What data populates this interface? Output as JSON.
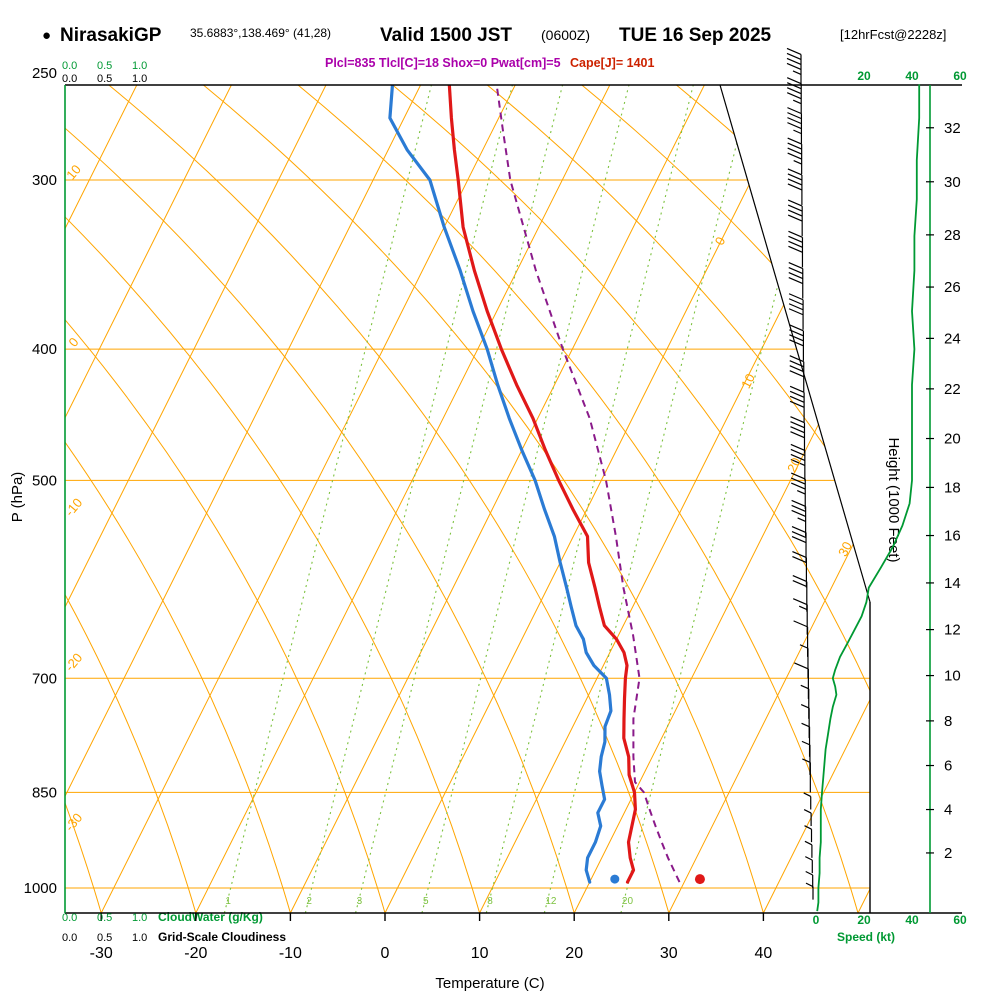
{
  "header": {
    "bullet": "●",
    "station": "NirasakiGP",
    "coords": "35.6883°,138.469° (41,28)",
    "valid": "Valid 1500 JST",
    "zulu": "(0600Z)",
    "date": "TUE 16 Sep 2025",
    "fcst": "[12hrFcst@2228z]",
    "params_left": "Plcl=835 Tlcl[C]=18 Shox=0 Pwat[cm]=5",
    "params_cape": "Cape[J]= 1401"
  },
  "axes": {
    "pressure_label": "P (hPa)",
    "pressure_ticks": [
      250,
      300,
      400,
      500,
      700,
      850,
      1000
    ],
    "temp_label": "Temperature (C)",
    "temp_ticks": [
      -30,
      -20,
      -10,
      0,
      10,
      20,
      30,
      40
    ],
    "height_label": "Height (1000 Feet)",
    "height_ticks": [
      2,
      4,
      6,
      8,
      10,
      12,
      14,
      16,
      18,
      20,
      22,
      24,
      26,
      28,
      30,
      32
    ],
    "speed_label": "Speed (kt)",
    "speed_ticks": [
      0,
      20,
      40,
      60
    ],
    "cloudwater_label": "CloudWater (g/Kg)",
    "cloudwater_scale": [
      "0.0",
      "0.5",
      "1.0"
    ],
    "cloudiness_label": "Grid-Scale Cloudiness",
    "cloudiness_scale": [
      "0.0",
      "0.5",
      "1.0"
    ],
    "isotherm_labels": [
      0,
      10,
      20,
      30
    ],
    "adiabat_labels": [
      10,
      0,
      -10,
      -20,
      -30
    ],
    "mixing_ratio_labels": [
      1,
      2,
      3,
      5,
      8,
      12,
      20
    ]
  },
  "colors": {
    "orange": "#ffa500",
    "green": "#009933",
    "light_green": "#7cc23f",
    "red": "#e01818",
    "blue": "#2b7bd4",
    "purple": "#8a1a8a",
    "param_purple": "#aa00aa",
    "param_red": "#cc2200",
    "black": "#000000"
  },
  "chart_data": {
    "type": "line",
    "title": "Skew-T log-P sounding, NirasakiGP, valid 1500 JST (0600Z) TUE 16 Sep 2025",
    "x_axis": {
      "label": "Temperature (C)",
      "range": [
        -35,
        45
      ]
    },
    "y_axis": {
      "label": "P (hPa)",
      "range": [
        1045,
        250
      ],
      "scale": "log"
    },
    "legend": "none",
    "grid": "skew-t (isotherms, dry adiabats, mixing-ratio lines)",
    "series": [
      {
        "name": "temperature",
        "units": "C vs hPa",
        "style": "solid",
        "points": [
          [
            990,
            24
          ],
          [
            970,
            24
          ],
          [
            950,
            23
          ],
          [
            925,
            22
          ],
          [
            900,
            21.5
          ],
          [
            875,
            21
          ],
          [
            850,
            20
          ],
          [
            825,
            18.5
          ],
          [
            800,
            17.5
          ],
          [
            775,
            16
          ],
          [
            750,
            15
          ],
          [
            725,
            14
          ],
          [
            700,
            13
          ],
          [
            685,
            12.5
          ],
          [
            670,
            11.5
          ],
          [
            655,
            10
          ],
          [
            640,
            8
          ],
          [
            620,
            6.5
          ],
          [
            600,
            5
          ],
          [
            575,
            3
          ],
          [
            550,
            1.5
          ],
          [
            525,
            -1.5
          ],
          [
            500,
            -4.5
          ],
          [
            475,
            -7.5
          ],
          [
            450,
            -10.5
          ],
          [
            425,
            -14
          ],
          [
            400,
            -17.5
          ],
          [
            375,
            -21
          ],
          [
            350,
            -24.5
          ],
          [
            325,
            -28
          ],
          [
            300,
            -31
          ],
          [
            285,
            -33
          ],
          [
            270,
            -35
          ],
          [
            255,
            -37
          ]
        ]
      },
      {
        "name": "dewpoint",
        "units": "C vs hPa",
        "style": "solid",
        "points": [
          [
            990,
            20
          ],
          [
            970,
            19
          ],
          [
            950,
            18.5
          ],
          [
            925,
            18.5
          ],
          [
            900,
            18.2
          ],
          [
            880,
            17.2
          ],
          [
            860,
            17.2
          ],
          [
            840,
            16.2
          ],
          [
            820,
            15.2
          ],
          [
            800,
            14.6
          ],
          [
            780,
            14.2
          ],
          [
            760,
            13.4
          ],
          [
            740,
            13.2
          ],
          [
            720,
            12.2
          ],
          [
            700,
            11
          ],
          [
            685,
            9
          ],
          [
            670,
            7.5
          ],
          [
            655,
            6.5
          ],
          [
            640,
            5
          ],
          [
            620,
            3.5
          ],
          [
            600,
            2
          ],
          [
            575,
            0
          ],
          [
            550,
            -2
          ],
          [
            525,
            -4.5
          ],
          [
            500,
            -7
          ],
          [
            475,
            -10
          ],
          [
            450,
            -13
          ],
          [
            425,
            -16
          ],
          [
            400,
            -19
          ],
          [
            375,
            -22.5
          ],
          [
            350,
            -26
          ],
          [
            325,
            -30
          ],
          [
            300,
            -34
          ],
          [
            285,
            -38
          ],
          [
            270,
            -41.5
          ],
          [
            255,
            -43
          ]
        ]
      },
      {
        "name": "parcel",
        "units": "C vs hPa",
        "style": "dashed",
        "points": [
          [
            990,
            29.5
          ],
          [
            950,
            27
          ],
          [
            925,
            25.5
          ],
          [
            900,
            24
          ],
          [
            875,
            22.5
          ],
          [
            850,
            21
          ],
          [
            835,
            19.5
          ],
          [
            800,
            18
          ],
          [
            750,
            16
          ],
          [
            700,
            14.5
          ],
          [
            650,
            11.5
          ],
          [
            600,
            8
          ],
          [
            550,
            4.5
          ],
          [
            500,
            0.5
          ],
          [
            450,
            -4.5
          ],
          [
            400,
            -11
          ],
          [
            350,
            -18
          ],
          [
            300,
            -25.5
          ],
          [
            275,
            -29
          ],
          [
            255,
            -32
          ]
        ]
      },
      {
        "name": "wind_speed",
        "units": "kt vs hPa",
        "style": "solid",
        "points": [
          [
            255,
            43
          ],
          [
            270,
            43
          ],
          [
            290,
            42
          ],
          [
            310,
            42
          ],
          [
            330,
            41
          ],
          [
            350,
            41
          ],
          [
            375,
            40
          ],
          [
            400,
            41
          ],
          [
            425,
            40
          ],
          [
            450,
            40
          ],
          [
            475,
            40
          ],
          [
            500,
            40
          ],
          [
            520,
            39
          ],
          [
            540,
            36
          ],
          [
            560,
            32
          ],
          [
            580,
            27
          ],
          [
            600,
            22
          ],
          [
            615,
            21
          ],
          [
            630,
            19
          ],
          [
            645,
            16
          ],
          [
            660,
            13
          ],
          [
            675,
            10
          ],
          [
            690,
            8
          ],
          [
            700,
            7
          ],
          [
            710,
            8
          ],
          [
            720,
            8.5
          ],
          [
            735,
            7
          ],
          [
            750,
            6
          ],
          [
            770,
            5
          ],
          [
            790,
            4
          ],
          [
            810,
            3.5
          ],
          [
            830,
            3
          ],
          [
            850,
            2.5
          ],
          [
            875,
            2
          ],
          [
            900,
            2
          ],
          [
            925,
            2
          ],
          [
            950,
            1.5
          ],
          [
            975,
            1.5
          ],
          [
            1000,
            1
          ],
          [
            1025,
            1
          ],
          [
            1040,
            0.5
          ]
        ]
      }
    ],
    "surface_dots": [
      {
        "series": "temperature",
        "p": 985,
        "value": 31.5
      },
      {
        "series": "dewpoint",
        "p": 985,
        "value": 22.5
      }
    ],
    "wind_barbs_kt": [
      [
        255,
        45
      ],
      [
        268,
        45
      ],
      [
        282,
        45
      ],
      [
        297,
        43
      ],
      [
        313,
        42
      ],
      [
        330,
        42
      ],
      [
        348,
        41
      ],
      [
        367,
        41
      ],
      [
        387,
        40
      ],
      [
        408,
        40
      ],
      [
        430,
        40
      ],
      [
        453,
        40
      ],
      [
        477,
        40
      ],
      [
        500,
        40
      ],
      [
        525,
        37
      ],
      [
        550,
        33
      ],
      [
        575,
        28
      ],
      [
        600,
        22
      ],
      [
        625,
        20
      ],
      [
        650,
        15
      ],
      [
        675,
        11
      ],
      [
        700,
        7
      ],
      [
        725,
        8
      ],
      [
        750,
        6
      ],
      [
        775,
        5
      ],
      [
        800,
        4
      ],
      [
        825,
        3
      ],
      [
        850,
        3
      ],
      [
        875,
        2
      ],
      [
        900,
        2
      ],
      [
        925,
        2
      ],
      [
        950,
        2
      ],
      [
        975,
        1
      ],
      [
        1000,
        1
      ],
      [
        1020,
        1
      ]
    ]
  }
}
